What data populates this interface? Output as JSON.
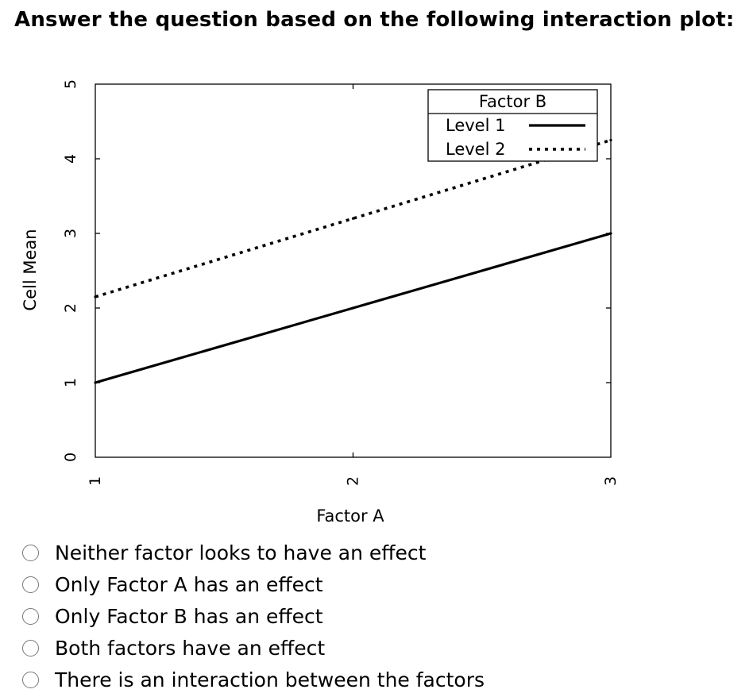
{
  "question": "Answer the question based on the following interaction plot:",
  "chart_data": {
    "type": "line",
    "xlabel": "Factor A",
    "ylabel": "Cell Mean",
    "x": [
      1,
      2,
      3
    ],
    "xlim": [
      1,
      3
    ],
    "ylim": [
      0,
      5
    ],
    "xticks": [
      "1",
      "2",
      "3"
    ],
    "yticks": [
      "0",
      "1",
      "2",
      "3",
      "4",
      "5"
    ],
    "grid": false,
    "legend": {
      "title": "Factor B",
      "placement": "top-right"
    },
    "series": [
      {
        "name": "Level 1",
        "values": [
          1,
          2,
          3
        ],
        "style": "solid",
        "color": "#000000"
      },
      {
        "name": "Level 2",
        "values": [
          2.15,
          3.2,
          4.25
        ],
        "style": "dotted",
        "color": "#000000"
      }
    ]
  },
  "options": [
    {
      "label": "Neither factor looks to have an effect"
    },
    {
      "label": "Only Factor A has an effect"
    },
    {
      "label": "Only Factor B has an effect"
    },
    {
      "label": "Both factors have an effect"
    },
    {
      "label": "There is an interaction between the factors"
    }
  ]
}
